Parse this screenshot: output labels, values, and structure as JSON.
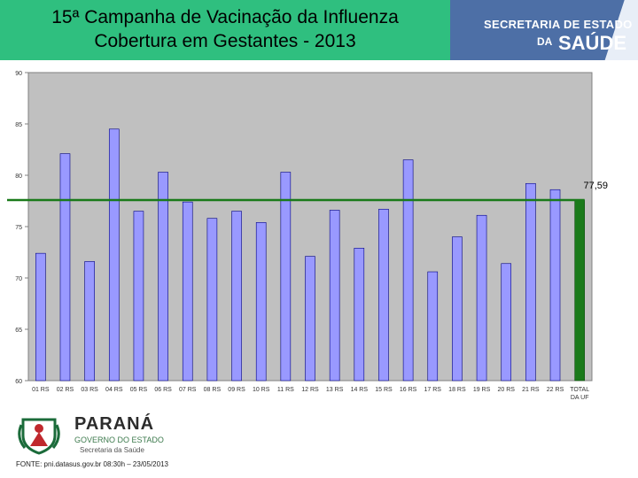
{
  "header": {
    "title_line1": "15ª Campanha de Vacinação da Influenza",
    "title_line2": "Cobertura em Gestantes - 2013",
    "banner_line1": "SECRETARIA DE ESTADO",
    "banner_da": "DA",
    "banner_saude": "SAÚDE"
  },
  "footer": {
    "logo_name": "PARANÁ",
    "logo_line2": "GOVERNO DO ESTADO",
    "logo_line3": "Secretaria da Saúde",
    "source": "FONTE: pni.datasus.gov.br 08:30h – 23/05/2013"
  },
  "colors": {
    "title_bg": "#2fbf7f",
    "banner_bg": "#4d6fa6",
    "plot_bg": "#c0c0c0",
    "bar": "#9999ff",
    "total_bar": "#1a7a1a",
    "reference_line": "#1a7a1a"
  },
  "chart_data": {
    "type": "bar",
    "categories": [
      "01 RS",
      "02 RS",
      "03 RS",
      "04 RS",
      "05 RS",
      "06 RS",
      "07 RS",
      "08 RS",
      "09 RS",
      "10 RS",
      "11 RS",
      "12 RS",
      "13 RS",
      "14 RS",
      "15 RS",
      "16 RS",
      "17 RS",
      "18 RS",
      "19 RS",
      "20 RS",
      "21 RS",
      "22 RS",
      "TOTAL DA UF"
    ],
    "values": [
      72.4,
      82.1,
      71.6,
      84.5,
      76.5,
      80.3,
      77.4,
      75.8,
      76.5,
      75.4,
      80.3,
      72.1,
      76.6,
      72.9,
      76.7,
      81.5,
      70.6,
      74.0,
      76.1,
      71.4,
      79.2,
      78.6,
      77.59
    ],
    "total_index": 22,
    "reference_value": 77.59,
    "reference_label": "77,59",
    "ylim": [
      60,
      90
    ],
    "yticks": [
      60,
      65,
      70,
      75,
      80,
      85,
      90
    ],
    "ytick_labels": [
      "60",
      "65",
      "70",
      "75",
      "80",
      "85",
      "90"
    ],
    "grid": false
  }
}
